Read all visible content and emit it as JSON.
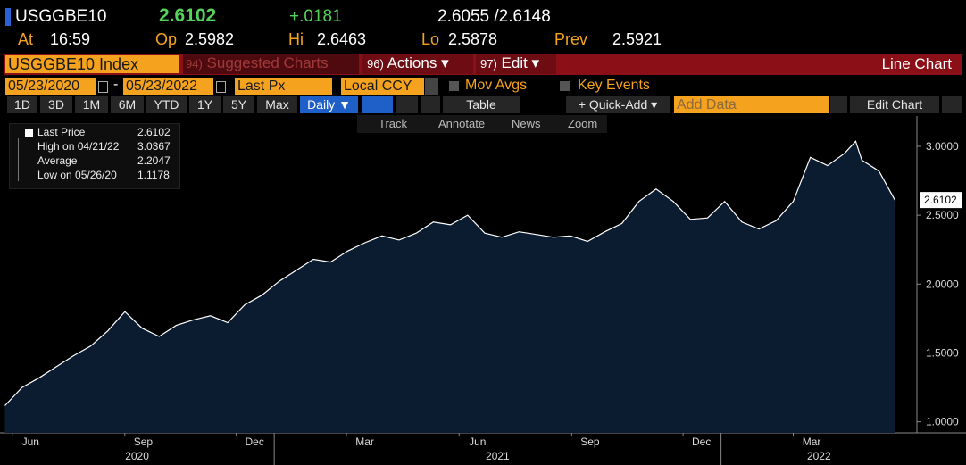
{
  "header": {
    "ticker": "USGGBE10",
    "last": "2.6102",
    "change": "+.0181",
    "bid_ask": "2.6055 /2.6148"
  },
  "quote": [
    {
      "label": "At",
      "value": "16:59"
    },
    {
      "label": "Op",
      "value": "2.5982"
    },
    {
      "label": "Hi",
      "value": "2.6463"
    },
    {
      "label": "Lo",
      "value": "2.5878"
    },
    {
      "label": "Prev",
      "value": "2.5921"
    }
  ],
  "toolbar": {
    "security": "USGGBE10 Index",
    "menus": [
      {
        "num": "94)",
        "label": "Suggested Charts"
      },
      {
        "num": "96)",
        "label": "Actions ▾"
      },
      {
        "num": "97)",
        "label": "Edit ▾"
      }
    ],
    "chart_type": "Line Chart"
  },
  "settings": {
    "start": "05/23/2020",
    "range_sep": "-",
    "end": "05/23/2022",
    "field": "Last Px",
    "currency": "Local CCY",
    "options": [
      "Mov Avgs",
      "Key Events"
    ]
  },
  "ranges": [
    "1D",
    "3D",
    "1M",
    "6M",
    "YTD",
    "1Y",
    "5Y",
    "Max"
  ],
  "frequency": "Daily ▼",
  "table": "Table",
  "quick_add": "+ Quick-Add ▾",
  "add_data": "Add Data",
  "edit_chart": "Edit Chart",
  "tools": [
    "Track",
    "Annotate",
    "News",
    "Zoom"
  ],
  "legend": [
    {
      "label": "Last Price",
      "value": "2.6102"
    },
    {
      "label": "High on 04/21/22",
      "value": "3.0367"
    },
    {
      "label": "Average",
      "value": "2.2047"
    },
    {
      "label": "Low on 05/26/20",
      "value": "1.1178"
    }
  ],
  "chart_data": {
    "type": "area",
    "x": [
      "2020-05-26",
      "2020-06-09",
      "2020-06-23",
      "2020-07-07",
      "2020-07-21",
      "2020-08-04",
      "2020-08-18",
      "2020-09-01",
      "2020-09-15",
      "2020-09-29",
      "2020-10-13",
      "2020-10-27",
      "2020-11-10",
      "2020-11-24",
      "2020-12-08",
      "2020-12-22",
      "2021-01-05",
      "2021-01-19",
      "2021-02-02",
      "2021-02-16",
      "2021-03-02",
      "2021-03-16",
      "2021-03-30",
      "2021-04-13",
      "2021-04-27",
      "2021-05-11",
      "2021-05-25",
      "2021-06-08",
      "2021-06-22",
      "2021-07-06",
      "2021-07-20",
      "2021-08-03",
      "2021-08-17",
      "2021-08-31",
      "2021-09-14",
      "2021-09-28",
      "2021-10-12",
      "2021-10-26",
      "2021-11-09",
      "2021-11-23",
      "2021-12-07",
      "2021-12-21",
      "2022-01-04",
      "2022-01-18",
      "2022-02-01",
      "2022-02-15",
      "2022-03-01",
      "2022-03-15",
      "2022-03-29",
      "2022-04-12",
      "2022-04-21",
      "2022-04-26",
      "2022-05-10",
      "2022-05-23"
    ],
    "series": [
      {
        "name": "Last Price",
        "color": "#ffffff",
        "fill": "#0c1c30",
        "values": [
          1.1178,
          1.25,
          1.32,
          1.4,
          1.48,
          1.55,
          1.66,
          1.8,
          1.68,
          1.62,
          1.7,
          1.74,
          1.77,
          1.72,
          1.85,
          1.92,
          2.02,
          2.1,
          2.18,
          2.16,
          2.24,
          2.3,
          2.35,
          2.32,
          2.37,
          2.45,
          2.43,
          2.5,
          2.37,
          2.34,
          2.38,
          2.36,
          2.34,
          2.35,
          2.31,
          2.38,
          2.44,
          2.6,
          2.69,
          2.6,
          2.47,
          2.48,
          2.6,
          2.45,
          2.4,
          2.46,
          2.6,
          2.92,
          2.86,
          2.95,
          3.0367,
          2.9,
          2.82,
          2.6102
        ]
      }
    ],
    "xlim": [
      "2020-05-22",
      "2022-06-10"
    ],
    "xticks": [
      {
        "value": "2020-06",
        "label": "Jun"
      },
      {
        "value": "2020-09",
        "label": "Sep"
      },
      {
        "value": "2020-12",
        "label": "Dec"
      },
      {
        "value": "2021-03",
        "label": "Mar"
      },
      {
        "value": "2021-06",
        "label": "Jun"
      },
      {
        "value": "2021-09",
        "label": "Sep"
      },
      {
        "value": "2021-12",
        "label": "Dec"
      },
      {
        "value": "2022-03",
        "label": "Mar"
      }
    ],
    "years": [
      "2020",
      "2021",
      "2022"
    ],
    "ylim": [
      0.92,
      3.22
    ],
    "yticks": [
      {
        "value": 1,
        "label": "1.0000"
      },
      {
        "value": 1.5,
        "label": "1.5000"
      },
      {
        "value": 2,
        "label": "2.0000"
      },
      {
        "value": 2.5,
        "label": "2.5000"
      },
      {
        "value": 3,
        "label": "3.0000"
      }
    ],
    "grid": false
  }
}
